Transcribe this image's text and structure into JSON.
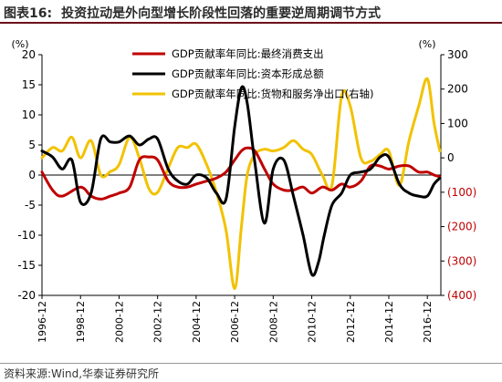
{
  "figure": {
    "number": "图表16:",
    "title": "投资拉动是外向型增长阶段性回落的重要逆周期调节方式"
  },
  "source": "资料来源:Wind,华泰证券研究所",
  "chart_data": {
    "type": "line",
    "left_axis": {
      "unit_label": "(%)",
      "ylim": [
        -20,
        20
      ],
      "ticks": [
        20,
        15,
        10,
        5,
        0,
        -5,
        -10,
        -15,
        -20
      ],
      "tick_labels": [
        "20",
        "15",
        "10",
        "5",
        "0",
        "-5",
        "-10",
        "-15",
        "-20"
      ],
      "tick_color": "#000000"
    },
    "right_axis": {
      "unit_label": "(%)",
      "ylim": [
        -400,
        300
      ],
      "ticks": [
        300,
        200,
        100,
        0,
        -100,
        -200,
        -300,
        -400
      ],
      "tick_labels": [
        "300",
        "200",
        "100",
        "0",
        "(100)",
        "(200)",
        "(300)",
        "(400)"
      ],
      "positive_color": "#000000",
      "negative_color": "#c00000"
    },
    "x_axis": {
      "range": [
        1996.95,
        2017.65
      ],
      "tick_labels": [
        "1996-12",
        "1998-12",
        "2000-12",
        "2002-12",
        "2004-12",
        "2006-12",
        "2008-12",
        "2010-12",
        "2012-12",
        "2014-12",
        "2016-12"
      ],
      "tick_positions": [
        1996.95,
        1998.95,
        2000.95,
        2002.95,
        2004.95,
        2006.95,
        2008.95,
        2010.95,
        2012.95,
        2014.95,
        2016.95
      ]
    },
    "series": [
      {
        "name": "GDP贡献率年同比:最终消费支出",
        "axis": "left",
        "color": "#c00000",
        "x": [
          1996.95,
          1997.5,
          1998.0,
          1998.95,
          1999.5,
          2000.0,
          2000.5,
          2000.95,
          2001.5,
          2002.0,
          2002.5,
          2002.95,
          2003.5,
          2004.0,
          2004.5,
          2004.95,
          2005.5,
          2006.0,
          2006.5,
          2006.95,
          2007.3,
          2007.6,
          2008.0,
          2008.5,
          2008.95,
          2009.5,
          2010.0,
          2010.5,
          2010.95,
          2011.5,
          2012.0,
          2012.5,
          2012.95,
          2013.5,
          2014.0,
          2014.5,
          2014.95,
          2015.5,
          2016.0,
          2016.5,
          2016.95,
          2017.3,
          2017.6
        ],
        "y": [
          0.5,
          -2.5,
          -3.5,
          -2.0,
          -3.5,
          -4.0,
          -3.5,
          -3.0,
          -2.0,
          2.5,
          3.0,
          2.5,
          -1.0,
          -2.0,
          -2.0,
          -1.5,
          -1.0,
          -0.5,
          0.5,
          2.5,
          4.0,
          4.5,
          4.0,
          1.0,
          -1.5,
          -2.5,
          -2.5,
          -2.0,
          -3.0,
          -2.0,
          -2.5,
          -1.5,
          -2.0,
          -1.0,
          1.5,
          1.5,
          1.0,
          1.5,
          1.5,
          0.5,
          0.5,
          0.0,
          -0.3
        ]
      },
      {
        "name": "GDP贡献率年同比:资本形成总额",
        "axis": "left",
        "color": "#000000",
        "x": [
          1996.95,
          1997.5,
          1998.0,
          1998.5,
          1998.95,
          1999.5,
          2000.0,
          2000.5,
          2000.95,
          2001.5,
          2002.0,
          2002.5,
          2002.95,
          2003.5,
          2004.0,
          2004.5,
          2004.95,
          2005.5,
          2006.0,
          2006.5,
          2006.95,
          2007.3,
          2007.6,
          2008.0,
          2008.5,
          2008.95,
          2009.5,
          2010.0,
          2010.5,
          2010.95,
          2011.3,
          2011.6,
          2012.0,
          2012.5,
          2012.95,
          2013.5,
          2014.0,
          2014.5,
          2014.95,
          2015.5,
          2016.0,
          2016.5,
          2016.95,
          2017.3,
          2017.6
        ],
        "y": [
          4.0,
          3.0,
          1.0,
          2.5,
          -4.5,
          -3.0,
          6.0,
          5.5,
          5.5,
          6.5,
          5.0,
          6.0,
          6.0,
          1.0,
          -1.0,
          -1.5,
          0.0,
          -0.5,
          -3.0,
          -4.0,
          8.0,
          14.5,
          12.0,
          2.0,
          -8.0,
          1.0,
          2.5,
          -3.5,
          -10.0,
          -16.5,
          -14.5,
          -10.0,
          -5.0,
          -3.0,
          0.0,
          0.5,
          1.0,
          3.0,
          3.0,
          -1.5,
          -3.0,
          -3.5,
          -3.5,
          -1.5,
          -0.5
        ]
      },
      {
        "name": "GDP贡献率年同比:货物和服务净出口(右轴)",
        "axis": "right",
        "color": "#f2c200",
        "x": [
          1996.95,
          1997.5,
          1998.0,
          1998.5,
          1998.95,
          1999.5,
          2000.0,
          2000.5,
          2000.95,
          2001.5,
          2002.0,
          2002.5,
          2002.95,
          2003.5,
          2004.0,
          2004.5,
          2004.95,
          2005.5,
          2006.0,
          2006.5,
          2006.95,
          2007.3,
          2007.6,
          2008.0,
          2008.5,
          2008.95,
          2009.5,
          2010.0,
          2010.5,
          2010.95,
          2011.5,
          2012.0,
          2012.5,
          2012.95,
          2013.5,
          2014.0,
          2014.5,
          2014.95,
          2015.5,
          2016.0,
          2016.5,
          2016.95,
          2017.3,
          2017.6
        ],
        "y": [
          0,
          30,
          20,
          60,
          0,
          50,
          -50,
          -40,
          -20,
          60,
          0,
          -90,
          -100,
          -30,
          30,
          30,
          40,
          -20,
          -100,
          -210,
          -380,
          -200,
          -50,
          10,
          25,
          20,
          30,
          50,
          25,
          10,
          -50,
          -80,
          180,
          150,
          0,
          -10,
          10,
          20,
          -80,
          50,
          150,
          230,
          100,
          20
        ]
      }
    ],
    "legend": {
      "placement": "top-center",
      "entries": [
        "GDP贡献率年同比:最终消费支出",
        "GDP贡献率年同比:资本形成总额",
        "GDP贡献率年同比:货物和服务净出口(右轴)"
      ]
    },
    "grid": false,
    "zero_line": true
  }
}
